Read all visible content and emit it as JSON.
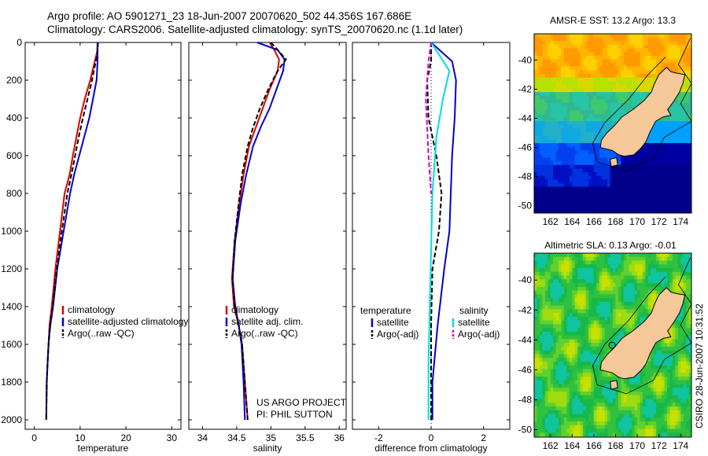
{
  "header": {
    "line1": "Argo profile: AO 5901271_23 18-Jun-2007 20070620_502 44.356S 167.686E",
    "line2": "Climatology: CARS2006. Satellite-adjusted climatology: synTS_20070620.nc (1.1d later)"
  },
  "credit": {
    "project": "US ARGO PROJECT",
    "pi": "PI: PHIL SUTTON",
    "stamp": "CSIRO 28-Jun-2007 10:31:52"
  },
  "colors": {
    "climatology": "#dd0000",
    "satellite": "#0000cc",
    "argo": "#000000",
    "sat_salinity": "#00dddd",
    "argo_salinity": "#cc00cc",
    "land": "#f5c89a"
  },
  "chart_data": [
    {
      "type": "line",
      "panel": "temperature",
      "xlabel": "temperature",
      "ylabel": "",
      "xlim": [
        -2,
        32
      ],
      "ylim": [
        2050,
        0
      ],
      "xticks": [
        0,
        10,
        20,
        30
      ],
      "yticks": [
        0,
        200,
        400,
        600,
        800,
        1000,
        1200,
        1400,
        1600,
        1800,
        2000
      ],
      "legend": [
        "climatology",
        "satellite-adjusted climatology",
        "Argo(..raw -QC)"
      ],
      "series": [
        {
          "name": "climatology",
          "color": "#dd0000",
          "dash": "",
          "x": [
            13.8,
            13.7,
            13.2,
            12.2,
            11.0,
            10.0,
            9.2,
            8.4,
            7.7,
            6.6,
            5.6,
            4.6,
            3.8,
            3.3,
            3.1,
            2.9,
            2.7,
            2.6
          ],
          "y": [
            0,
            50,
            100,
            200,
            300,
            400,
            500,
            600,
            700,
            800,
            1000,
            1200,
            1400,
            1500,
            1600,
            1700,
            1800,
            2000
          ]
        },
        {
          "name": "satellite-adjusted climatology",
          "color": "#0000cc",
          "dash": "",
          "x": [
            13.8,
            13.8,
            13.8,
            13.6,
            12.8,
            12.0,
            10.9,
            9.8,
            8.7,
            7.8,
            6.4,
            5.0,
            4.1,
            3.5,
            3.1,
            2.9,
            2.7,
            2.6
          ],
          "y": [
            0,
            50,
            100,
            200,
            300,
            400,
            500,
            600,
            700,
            800,
            1000,
            1200,
            1400,
            1500,
            1600,
            1700,
            1800,
            2000
          ]
        },
        {
          "name": "Argo(..raw -QC)",
          "color": "#000000",
          "dash": "6,3",
          "x": [
            13.9,
            13.8,
            13.4,
            12.6,
            11.6,
            10.6,
            9.7,
            8.9,
            8.1,
            7.2,
            6.0,
            4.9,
            4.0,
            3.4,
            3.1,
            2.9,
            2.7,
            2.6
          ],
          "y": [
            0,
            50,
            100,
            200,
            300,
            400,
            500,
            600,
            700,
            800,
            1000,
            1200,
            1400,
            1500,
            1600,
            1700,
            1800,
            2000
          ]
        }
      ]
    },
    {
      "type": "line",
      "panel": "salinity",
      "xlabel": "salinity",
      "ylabel": "",
      "xlim": [
        33.8,
        36.1
      ],
      "ylim": [
        2050,
        0
      ],
      "xticks": [
        34,
        34.5,
        35,
        35.5,
        36
      ],
      "legend": [
        "climatology",
        "satellite adj. clim.",
        "Argo(..raw -QC)"
      ],
      "series": [
        {
          "name": "climatology",
          "color": "#dd0000",
          "dash": "",
          "x": [
            34.98,
            35.05,
            35.12,
            35.1,
            34.98,
            34.88,
            34.78,
            34.68,
            34.6,
            34.54,
            34.47,
            34.43,
            34.46,
            34.53,
            34.58,
            34.62,
            34.66
          ],
          "y": [
            0,
            40,
            90,
            150,
            250,
            350,
            450,
            550,
            700,
            850,
            1050,
            1250,
            1400,
            1500,
            1600,
            1800,
            2000
          ]
        },
        {
          "name": "satellite adj. clim.",
          "color": "#0000cc",
          "dash": "",
          "x": [
            34.8,
            35.1,
            35.2,
            35.18,
            35.08,
            34.98,
            34.85,
            34.74,
            34.64,
            34.56,
            34.48,
            34.44,
            34.48,
            34.53,
            34.57,
            34.6,
            34.62
          ],
          "y": [
            0,
            40,
            90,
            150,
            250,
            350,
            450,
            550,
            700,
            850,
            1050,
            1250,
            1400,
            1500,
            1600,
            1800,
            2000
          ]
        },
        {
          "name": "Argo(..raw -QC)",
          "color": "#000000",
          "dash": "6,3",
          "x": [
            35.0,
            35.1,
            35.22,
            35.1,
            34.96,
            34.84,
            34.74,
            34.66,
            34.58,
            34.53,
            34.47,
            34.44,
            34.47,
            34.53,
            34.58,
            34.62,
            34.66
          ],
          "y": [
            0,
            40,
            90,
            150,
            250,
            350,
            450,
            550,
            700,
            850,
            1050,
            1250,
            1400,
            1500,
            1600,
            1800,
            2000
          ]
        }
      ]
    },
    {
      "type": "line",
      "panel": "difference",
      "xlabel": "difference from climatology",
      "ylabel": "",
      "xlim": [
        -3,
        3
      ],
      "ylim": [
        2050,
        0
      ],
      "xticks": [
        -2,
        0,
        2
      ],
      "legend": {
        "temperature_heading": "temperature",
        "salinity_heading": "salinity",
        "temperature": [
          "satellite",
          "Argo(-adj)"
        ],
        "salinity": [
          "satellite",
          "Argo(-adj)"
        ]
      },
      "series": [
        {
          "name": "satellite",
          "group": "temperature",
          "color": "#0000cc",
          "dash": "",
          "x": [
            0.0,
            0.8,
            0.95,
            0.9,
            0.8,
            0.75,
            0.7,
            0.5,
            0.25,
            0.05,
            0.05
          ],
          "y": [
            0,
            100,
            200,
            400,
            600,
            800,
            1000,
            1200,
            1500,
            1800,
            2000
          ]
        },
        {
          "name": "Argo(-adj)",
          "group": "temperature",
          "color": "#000000",
          "dash": "6,3",
          "x": [
            0.0,
            0.0,
            -0.15,
            -0.1,
            0.2,
            0.4,
            0.3,
            0.05,
            0.0,
            0.0
          ],
          "y": [
            0,
            100,
            200,
            400,
            600,
            800,
            1000,
            1200,
            1500,
            2000
          ]
        },
        {
          "name": "satellite",
          "group": "salinity",
          "color": "#00dddd",
          "dash": "",
          "x": [
            0.0,
            0.7,
            0.45,
            0.2,
            0.05,
            0.0,
            -0.05,
            -0.1,
            -0.1
          ],
          "y": [
            0,
            150,
            300,
            500,
            800,
            1100,
            1400,
            1700,
            2000
          ]
        },
        {
          "name": "Argo(-adj)",
          "group": "salinity",
          "color": "#cc00cc",
          "dash": "6,3",
          "x": [
            0.0,
            -0.1,
            -0.2,
            -0.1,
            0.0
          ],
          "y": [
            0,
            100,
            300,
            600,
            800
          ]
        }
      ]
    },
    {
      "type": "heatmap",
      "panel": "sst-map",
      "title": "AMSR-E SST: 13.2 Argo: 13.3",
      "xlim": [
        160.5,
        175
      ],
      "ylim": [
        -50.5,
        -38.2
      ],
      "xticks": [
        162,
        164,
        166,
        168,
        170,
        172,
        174
      ],
      "yticks": [
        -40,
        -42,
        -44,
        -46,
        -48,
        -50
      ]
    },
    {
      "type": "heatmap",
      "panel": "sla-map",
      "title": "Altimetric SLA: 0.13 Argo: -0.01",
      "xlim": [
        160.5,
        175
      ],
      "ylim": [
        -50.5,
        -38.2
      ],
      "xticks": [
        162,
        164,
        166,
        168,
        170,
        172,
        174
      ],
      "yticks": [
        -40,
        -42,
        -44,
        -46,
        -48,
        -50
      ]
    }
  ]
}
